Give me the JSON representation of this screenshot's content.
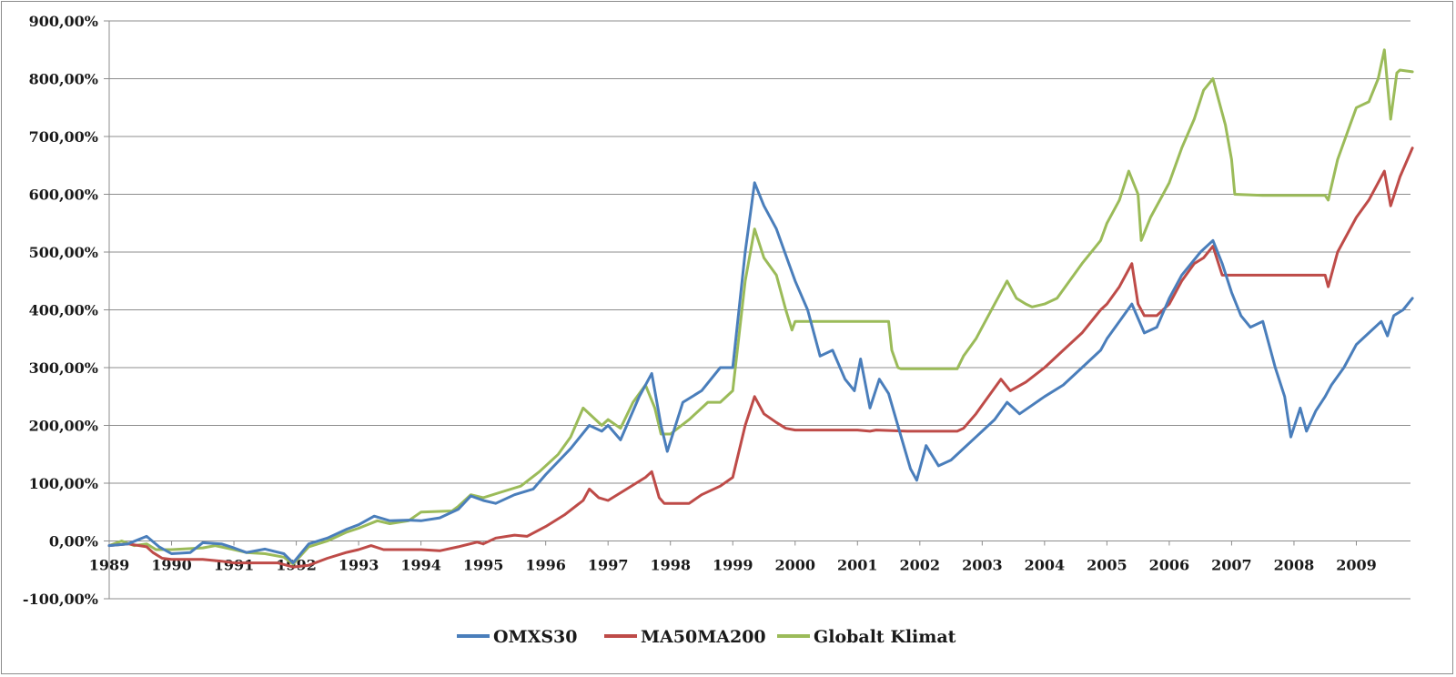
{
  "chart_data": {
    "type": "line",
    "title": "",
    "xlabel": "",
    "ylabel": "",
    "x_ticks": [
      "1989",
      "1990",
      "1991",
      "1992",
      "1993",
      "1994",
      "1995",
      "1996",
      "1997",
      "1998",
      "1999",
      "2000",
      "2001",
      "2002",
      "2003",
      "2004",
      "2005",
      "2006",
      "2007",
      "2008",
      "2009"
    ],
    "y_ticks": [
      "900,00%",
      "800,00%",
      "700,00%",
      "600,00%",
      "500,00%",
      "400,00%",
      "300,00%",
      "200,00%",
      "100,00%",
      "0,00%",
      "-100,00%"
    ],
    "ylim": [
      -100,
      900
    ],
    "xlim": [
      1989.0,
      2009.9
    ],
    "grid": "horizontal",
    "legend": "bottom",
    "series": [
      {
        "name": "OMXS30",
        "color": "#4a7ebb",
        "points": [
          [
            1989.0,
            -8
          ],
          [
            1989.3,
            -5
          ],
          [
            1989.6,
            8
          ],
          [
            1989.8,
            -10
          ],
          [
            1990.0,
            -22
          ],
          [
            1990.3,
            -20
          ],
          [
            1990.5,
            -3
          ],
          [
            1990.8,
            -5
          ],
          [
            1991.0,
            -12
          ],
          [
            1991.2,
            -20
          ],
          [
            1991.5,
            -14
          ],
          [
            1991.8,
            -22
          ],
          [
            1991.95,
            -38
          ],
          [
            1992.2,
            -5
          ],
          [
            1992.5,
            5
          ],
          [
            1992.8,
            20
          ],
          [
            1993.0,
            28
          ],
          [
            1993.25,
            43
          ],
          [
            1993.5,
            35
          ],
          [
            1993.8,
            36
          ],
          [
            1994.0,
            35
          ],
          [
            1994.3,
            40
          ],
          [
            1994.6,
            55
          ],
          [
            1994.8,
            78
          ],
          [
            1995.0,
            70
          ],
          [
            1995.2,
            65
          ],
          [
            1995.5,
            80
          ],
          [
            1995.8,
            90
          ],
          [
            1996.0,
            115
          ],
          [
            1996.4,
            160
          ],
          [
            1996.7,
            200
          ],
          [
            1996.9,
            190
          ],
          [
            1997.0,
            200
          ],
          [
            1997.2,
            175
          ],
          [
            1997.5,
            250
          ],
          [
            1997.7,
            290
          ],
          [
            1997.85,
            200
          ],
          [
            1997.95,
            155
          ],
          [
            1998.2,
            240
          ],
          [
            1998.5,
            260
          ],
          [
            1998.8,
            300
          ],
          [
            1999.0,
            300
          ],
          [
            1999.2,
            500
          ],
          [
            1999.35,
            620
          ],
          [
            1999.5,
            580
          ],
          [
            1999.7,
            540
          ],
          [
            1999.9,
            480
          ],
          [
            2000.0,
            450
          ],
          [
            2000.2,
            400
          ],
          [
            2000.4,
            320
          ],
          [
            2000.6,
            330
          ],
          [
            2000.8,
            280
          ],
          [
            2000.95,
            260
          ],
          [
            2001.05,
            315
          ],
          [
            2001.2,
            230
          ],
          [
            2001.35,
            280
          ],
          [
            2001.5,
            255
          ],
          [
            2001.7,
            180
          ],
          [
            2001.85,
            125
          ],
          [
            2001.95,
            105
          ],
          [
            2002.1,
            165
          ],
          [
            2002.3,
            130
          ],
          [
            2002.5,
            140
          ],
          [
            2002.7,
            160
          ],
          [
            2002.9,
            180
          ],
          [
            2003.0,
            190
          ],
          [
            2003.2,
            210
          ],
          [
            2003.4,
            240
          ],
          [
            2003.6,
            220
          ],
          [
            2003.8,
            235
          ],
          [
            2004.0,
            250
          ],
          [
            2004.3,
            270
          ],
          [
            2004.6,
            300
          ],
          [
            2004.9,
            330
          ],
          [
            2005.0,
            350
          ],
          [
            2005.2,
            380
          ],
          [
            2005.4,
            410
          ],
          [
            2005.6,
            360
          ],
          [
            2005.8,
            370
          ],
          [
            2006.0,
            420
          ],
          [
            2006.2,
            460
          ],
          [
            2006.5,
            500
          ],
          [
            2006.7,
            520
          ],
          [
            2006.85,
            480
          ],
          [
            2007.0,
            430
          ],
          [
            2007.15,
            390
          ],
          [
            2007.3,
            370
          ],
          [
            2007.5,
            380
          ],
          [
            2007.7,
            300
          ],
          [
            2007.85,
            250
          ],
          [
            2007.95,
            180
          ],
          [
            2008.1,
            230
          ],
          [
            2008.2,
            190
          ],
          [
            2008.35,
            225
          ],
          [
            2008.5,
            250
          ],
          [
            2008.6,
            270
          ],
          [
            2008.8,
            300
          ],
          [
            2009.0,
            340
          ],
          [
            2009.2,
            360
          ],
          [
            2009.4,
            380
          ],
          [
            2009.5,
            355
          ],
          [
            2009.6,
            390
          ],
          [
            2009.75,
            400
          ],
          [
            2009.9,
            420
          ]
        ]
      },
      {
        "name": "MA50MA200",
        "color": "#be4b48",
        "points": [
          [
            1989.0,
            -8
          ],
          [
            1989.3,
            -5
          ],
          [
            1989.6,
            -10
          ],
          [
            1989.7,
            -20
          ],
          [
            1989.85,
            -30
          ],
          [
            1990.0,
            -32
          ],
          [
            1990.5,
            -32
          ],
          [
            1990.8,
            -35
          ],
          [
            1991.0,
            -38
          ],
          [
            1991.5,
            -38
          ],
          [
            1991.7,
            -38
          ],
          [
            1991.95,
            -45
          ],
          [
            1992.2,
            -42
          ],
          [
            1992.5,
            -30
          ],
          [
            1992.8,
            -20
          ],
          [
            1993.0,
            -15
          ],
          [
            1993.2,
            -8
          ],
          [
            1993.4,
            -15
          ],
          [
            1994.0,
            -15
          ],
          [
            1994.3,
            -17
          ],
          [
            1994.6,
            -10
          ],
          [
            1994.9,
            -2
          ],
          [
            1995.0,
            -5
          ],
          [
            1995.2,
            5
          ],
          [
            1995.5,
            10
          ],
          [
            1995.7,
            8
          ],
          [
            1996.0,
            25
          ],
          [
            1996.3,
            45
          ],
          [
            1996.6,
            70
          ],
          [
            1996.7,
            90
          ],
          [
            1996.85,
            75
          ],
          [
            1997.0,
            70
          ],
          [
            1997.3,
            90
          ],
          [
            1997.6,
            110
          ],
          [
            1997.7,
            120
          ],
          [
            1997.82,
            75
          ],
          [
            1997.9,
            65
          ],
          [
            1998.3,
            65
          ],
          [
            1998.5,
            80
          ],
          [
            1998.8,
            95
          ],
          [
            1999.0,
            110
          ],
          [
            1999.2,
            200
          ],
          [
            1999.35,
            250
          ],
          [
            1999.5,
            220
          ],
          [
            1999.7,
            205
          ],
          [
            1999.85,
            195
          ],
          [
            2000.0,
            192
          ],
          [
            2000.5,
            192
          ],
          [
            2001.0,
            192
          ],
          [
            2001.2,
            190
          ],
          [
            2001.3,
            192
          ],
          [
            2001.8,
            190
          ],
          [
            2002.0,
            190
          ],
          [
            2002.6,
            190
          ],
          [
            2002.7,
            195
          ],
          [
            2002.9,
            220
          ],
          [
            2003.0,
            235
          ],
          [
            2003.3,
            280
          ],
          [
            2003.45,
            260
          ],
          [
            2003.7,
            275
          ],
          [
            2004.0,
            300
          ],
          [
            2004.3,
            330
          ],
          [
            2004.6,
            360
          ],
          [
            2004.9,
            400
          ],
          [
            2005.0,
            410
          ],
          [
            2005.2,
            440
          ],
          [
            2005.4,
            480
          ],
          [
            2005.5,
            410
          ],
          [
            2005.6,
            390
          ],
          [
            2005.8,
            390
          ],
          [
            2006.0,
            410
          ],
          [
            2006.2,
            450
          ],
          [
            2006.4,
            480
          ],
          [
            2006.55,
            490
          ],
          [
            2006.7,
            510
          ],
          [
            2006.85,
            460
          ],
          [
            2006.95,
            460
          ],
          [
            2007.2,
            460
          ],
          [
            2007.8,
            460
          ],
          [
            2008.5,
            460
          ],
          [
            2008.55,
            440
          ],
          [
            2008.7,
            500
          ],
          [
            2009.0,
            560
          ],
          [
            2009.2,
            590
          ],
          [
            2009.45,
            640
          ],
          [
            2009.55,
            580
          ],
          [
            2009.7,
            630
          ],
          [
            2009.9,
            680
          ]
        ]
      },
      {
        "name": "Globalt Klimat",
        "color": "#9bbb59",
        "points": [
          [
            1989.0,
            -8
          ],
          [
            1989.2,
            0
          ],
          [
            1989.4,
            -8
          ],
          [
            1989.6,
            -5
          ],
          [
            1989.75,
            -15
          ],
          [
            1990.0,
            -15
          ],
          [
            1990.5,
            -12
          ],
          [
            1990.7,
            -8
          ],
          [
            1991.0,
            -15
          ],
          [
            1991.2,
            -20
          ],
          [
            1991.5,
            -22
          ],
          [
            1991.8,
            -28
          ],
          [
            1991.95,
            -40
          ],
          [
            1992.2,
            -10
          ],
          [
            1992.5,
            0
          ],
          [
            1992.8,
            15
          ],
          [
            1993.0,
            22
          ],
          [
            1993.3,
            35
          ],
          [
            1993.5,
            30
          ],
          [
            1993.8,
            35
          ],
          [
            1994.0,
            50
          ],
          [
            1994.5,
            52
          ],
          [
            1994.6,
            60
          ],
          [
            1994.8,
            80
          ],
          [
            1995.0,
            75
          ],
          [
            1995.3,
            85
          ],
          [
            1995.6,
            95
          ],
          [
            1995.9,
            120
          ],
          [
            1996.2,
            150
          ],
          [
            1996.4,
            180
          ],
          [
            1996.6,
            230
          ],
          [
            1996.75,
            215
          ],
          [
            1996.9,
            200
          ],
          [
            1997.0,
            210
          ],
          [
            1997.2,
            195
          ],
          [
            1997.4,
            240
          ],
          [
            1997.6,
            270
          ],
          [
            1997.75,
            230
          ],
          [
            1997.85,
            185
          ],
          [
            1998.0,
            185
          ],
          [
            1998.3,
            210
          ],
          [
            1998.6,
            240
          ],
          [
            1998.8,
            240
          ],
          [
            1999.0,
            260
          ],
          [
            1999.2,
            450
          ],
          [
            1999.35,
            540
          ],
          [
            1999.5,
            490
          ],
          [
            1999.7,
            460
          ],
          [
            1999.85,
            400
          ],
          [
            1999.95,
            365
          ],
          [
            2000.0,
            380
          ],
          [
            2000.5,
            380
          ],
          [
            2001.0,
            380
          ],
          [
            2001.5,
            380
          ],
          [
            2001.55,
            330
          ],
          [
            2001.65,
            300
          ],
          [
            2001.7,
            298
          ],
          [
            2002.0,
            298
          ],
          [
            2002.6,
            298
          ],
          [
            2002.7,
            320
          ],
          [
            2002.9,
            350
          ],
          [
            2003.0,
            370
          ],
          [
            2003.2,
            410
          ],
          [
            2003.4,
            450
          ],
          [
            2003.55,
            420
          ],
          [
            2003.7,
            410
          ],
          [
            2003.8,
            405
          ],
          [
            2004.0,
            410
          ],
          [
            2004.2,
            420
          ],
          [
            2004.4,
            450
          ],
          [
            2004.6,
            480
          ],
          [
            2004.9,
            520
          ],
          [
            2005.0,
            550
          ],
          [
            2005.2,
            590
          ],
          [
            2005.35,
            640
          ],
          [
            2005.5,
            600
          ],
          [
            2005.55,
            520
          ],
          [
            2005.7,
            560
          ],
          [
            2005.9,
            600
          ],
          [
            2006.0,
            620
          ],
          [
            2006.2,
            680
          ],
          [
            2006.4,
            730
          ],
          [
            2006.55,
            780
          ],
          [
            2006.7,
            800
          ],
          [
            2006.8,
            760
          ],
          [
            2006.9,
            720
          ],
          [
            2007.0,
            660
          ],
          [
            2007.05,
            600
          ],
          [
            2007.5,
            598
          ],
          [
            2008.0,
            598
          ],
          [
            2008.5,
            598
          ],
          [
            2008.55,
            590
          ],
          [
            2008.7,
            660
          ],
          [
            2008.9,
            720
          ],
          [
            2009.0,
            750
          ],
          [
            2009.2,
            760
          ],
          [
            2009.35,
            800
          ],
          [
            2009.45,
            850
          ],
          [
            2009.5,
            790
          ],
          [
            2009.55,
            730
          ],
          [
            2009.65,
            810
          ],
          [
            2009.7,
            815
          ],
          [
            2009.9,
            812
          ]
        ]
      }
    ]
  }
}
